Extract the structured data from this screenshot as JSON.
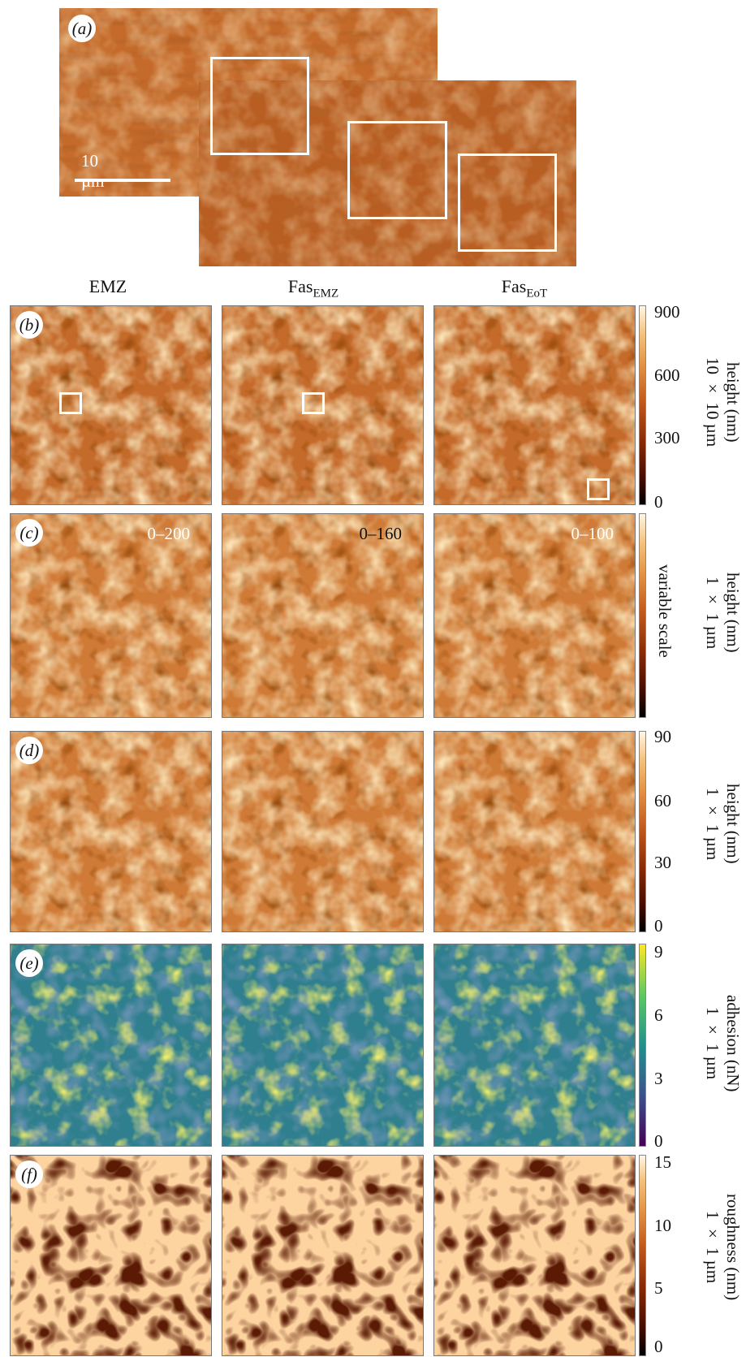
{
  "panel_a": {
    "label": "a",
    "scalebar_label": "10 µm"
  },
  "columns": [
    {
      "main": "EMZ",
      "sub": ""
    },
    {
      "main": "Fas",
      "sub": "EMZ"
    },
    {
      "main": "Fas",
      "sub": "EoT"
    }
  ],
  "rows": [
    {
      "label": "b",
      "colormap": "afm-height",
      "side_line1": "height (nm)",
      "side_line2": "10 × 10 µm",
      "ticks": [
        "900",
        "600",
        "300",
        "0"
      ],
      "scale_notes": [
        "",
        "",
        ""
      ]
    },
    {
      "label": "c",
      "colormap": "afm-height",
      "side_line1": "height (nm)",
      "side_line2": "1 × 1 µm",
      "colorbar_text": "variable scale",
      "scale_notes": [
        "0–200",
        "0–160",
        "0–100"
      ]
    },
    {
      "label": "d",
      "colormap": "afm-height",
      "side_line1": "height (nm)",
      "side_line2": "1 × 1 µm",
      "ticks": [
        "90",
        "60",
        "30",
        "0"
      ]
    },
    {
      "label": "e",
      "colormap": "viridis",
      "side_line1": "adhesion (nN)",
      "side_line2": "1 × 1 µm",
      "ticks": [
        "9",
        "6",
        "3",
        "0"
      ]
    },
    {
      "label": "f",
      "colormap": "afm-height",
      "side_line1": "roughness (nm)",
      "side_line2": "1 × 1 µm",
      "ticks": [
        "15",
        "10",
        "5",
        "0"
      ]
    }
  ]
}
